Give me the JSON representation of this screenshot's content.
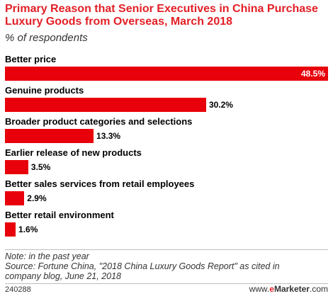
{
  "chart_data": {
    "type": "bar",
    "orientation": "horizontal",
    "title": "Primary Reason that Senior Executives in China Purchase Luxury Goods from Overseas, March 2018",
    "subtitle": "% of respondents",
    "categories": [
      "Better price",
      "Genuine products",
      "Broader product categories and selections",
      "Earlier release of new products",
      "Better sales services from retail employees",
      "Better retail environment"
    ],
    "values": [
      48.5,
      30.2,
      13.3,
      3.5,
      2.9,
      1.6
    ],
    "value_labels": [
      "48.5%",
      "30.2%",
      "13.3%",
      "3.5%",
      "2.9%",
      "1.6%"
    ],
    "unit": "%",
    "xlim": [
      0,
      48.5
    ],
    "grid": false,
    "legend": "none",
    "bar_color": "#e8000b"
  },
  "footnotes": {
    "note": "Note: in the past year",
    "source_line1": "Source: Fortune China, \"2018 China Luxury Goods Report\" as cited in",
    "source_line2": "company blog, June 21, 2018"
  },
  "footer": {
    "chart_id": "240288",
    "brand_prefix": "www.",
    "brand_e": "e",
    "brand_name": "Marketer",
    "brand_suffix": ".com"
  },
  "colors": {
    "title": "#e21f26",
    "bar": "#e8000b"
  }
}
